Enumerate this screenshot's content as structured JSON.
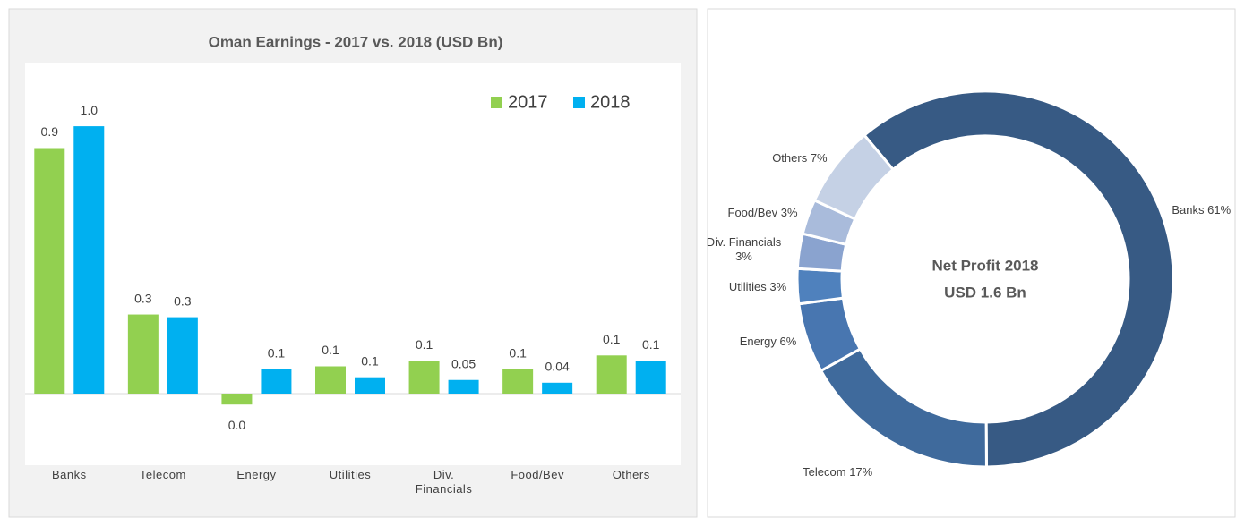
{
  "chart_data": [
    {
      "type": "bar",
      "title": "Oman Earnings - 2017 vs. 2018 (USD Bn)",
      "categories": [
        "Banks",
        "Telecom",
        "Energy",
        "Utilities",
        "Div. Financials",
        "Food/Bev",
        "Others"
      ],
      "series": [
        {
          "name": "2017",
          "color": "#92d050",
          "values": [
            0.9,
            0.29,
            -0.04,
            0.1,
            0.12,
            0.09,
            0.14
          ],
          "value_labels": [
            "0.9",
            "0.3",
            "0.0",
            "0.1",
            "0.1",
            "0.1",
            "0.1"
          ]
        },
        {
          "name": "2018",
          "color": "#00b0f0",
          "values": [
            0.98,
            0.28,
            0.09,
            0.06,
            0.05,
            0.04,
            0.12
          ],
          "value_labels": [
            "1.0",
            "0.3",
            "0.1",
            "0.1",
            "0.05",
            "0.04",
            "0.1"
          ]
        }
      ],
      "ylim": [
        -0.2,
        1.1
      ],
      "legend": "top-right"
    },
    {
      "type": "donut",
      "center_text": [
        "Net Profit 2018",
        "USD 1.6 Bn"
      ],
      "categories": [
        "Banks",
        "Telecom",
        "Energy",
        "Utilities",
        "Div. Financials",
        "Food/Bev",
        "Others"
      ],
      "values": [
        61,
        17,
        6,
        3,
        3,
        3,
        7
      ],
      "value_labels": [
        "61%",
        "17%",
        "6%",
        "3%",
        "3%",
        "3%",
        "7%"
      ],
      "colors": [
        "#375a84",
        "#3f6a9c",
        "#4876b0",
        "#4f81bd",
        "#8aa3cf",
        "#a9bbdb",
        "#c5d1e5"
      ]
    }
  ]
}
